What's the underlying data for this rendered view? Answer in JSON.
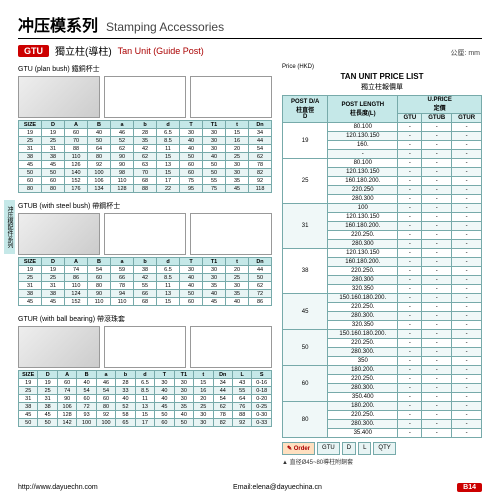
{
  "header": {
    "cn": "冲压模系列",
    "en": "Stamping Accessories"
  },
  "subhead": {
    "tag": "GTU",
    "cn": "獨立柱(導柱)",
    "en": "Tan Unit (Guide Post)"
  },
  "units": "公厘: mm",
  "sideTab": "冲压模配件系列",
  "sections": [
    {
      "title": "GTU (plan bush) 鐵銅杯士",
      "cols": [
        "SIZE",
        "D",
        "A",
        "B",
        "a",
        "b",
        "d",
        "T",
        "T1",
        "t",
        "Dn"
      ],
      "rows": [
        [
          "19",
          "19",
          "60",
          "40",
          "46",
          "28",
          "6.5",
          "30",
          "30",
          "15",
          "34"
        ],
        [
          "25",
          "25",
          "70",
          "50",
          "52",
          "35",
          "8.5",
          "40",
          "30",
          "16",
          "44"
        ],
        [
          "31",
          "31",
          "88",
          "64",
          "62",
          "42",
          "11",
          "40",
          "30",
          "20",
          "54"
        ],
        [
          "38",
          "38",
          "110",
          "80",
          "90",
          "62",
          "15",
          "50",
          "40",
          "25",
          "62"
        ],
        [
          "45",
          "45",
          "126",
          "92",
          "90",
          "63",
          "13",
          "60",
          "50",
          "30",
          "78"
        ],
        [
          "50",
          "50",
          "140",
          "100",
          "98",
          "70",
          "15",
          "60",
          "50",
          "30",
          "82"
        ],
        [
          "60",
          "60",
          "152",
          "106",
          "110",
          "68",
          "17",
          "75",
          "55",
          "35",
          "92"
        ],
        [
          "80",
          "80",
          "176",
          "134",
          "128",
          "88",
          "22",
          "95",
          "75",
          "45",
          "118"
        ]
      ]
    },
    {
      "title": "GTUB (with steel bush) 帶鋼杯士",
      "cols": [
        "SIZE",
        "D",
        "A",
        "B",
        "a",
        "b",
        "d",
        "T",
        "T1",
        "t",
        "Dn"
      ],
      "rows": [
        [
          "19",
          "19",
          "74",
          "54",
          "59",
          "38",
          "6.5",
          "30",
          "30",
          "20",
          "44"
        ],
        [
          "25",
          "25",
          "86",
          "60",
          "66",
          "42",
          "8.5",
          "40",
          "30",
          "25",
          "50"
        ],
        [
          "31",
          "31",
          "110",
          "80",
          "78",
          "55",
          "11",
          "40",
          "35",
          "30",
          "62"
        ],
        [
          "38",
          "38",
          "124",
          "90",
          "94",
          "66",
          "13",
          "50",
          "40",
          "35",
          "72"
        ],
        [
          "45",
          "45",
          "152",
          "110",
          "110",
          "68",
          "15",
          "60",
          "45",
          "40",
          "86"
        ]
      ]
    },
    {
      "title": "GTUR (with ball bearing) 帶滾珠套",
      "cols": [
        "SIZE",
        "D",
        "A",
        "B",
        "a",
        "b",
        "d",
        "T",
        "T1",
        "t",
        "Dn",
        "L",
        "S"
      ],
      "rows": [
        [
          "19",
          "19",
          "60",
          "40",
          "46",
          "28",
          "6.5",
          "30",
          "30",
          "15",
          "34",
          "43",
          "0-16"
        ],
        [
          "25",
          "25",
          "74",
          "54",
          "54",
          "33",
          "8.5",
          "40",
          "30",
          "16",
          "44",
          "55",
          "0-18"
        ],
        [
          "31",
          "31",
          "90",
          "60",
          "60",
          "40",
          "11",
          "40",
          "30",
          "20",
          "54",
          "64",
          "0-20"
        ],
        [
          "38",
          "38",
          "106",
          "72",
          "80",
          "52",
          "13",
          "45",
          "35",
          "25",
          "62",
          "76",
          "0-25"
        ],
        [
          "45",
          "45",
          "128",
          "93",
          "92",
          "58",
          "15",
          "50",
          "40",
          "30",
          "78",
          "88",
          "0-30"
        ],
        [
          "50",
          "50",
          "142",
          "100",
          "100",
          "65",
          "17",
          "60",
          "50",
          "30",
          "82",
          "92",
          "0-33"
        ]
      ]
    }
  ],
  "price": {
    "hkd": "Price (HKD)",
    "title": "TAN UNIT PRICE LIST",
    "sub": "獨立柱報價單",
    "headers": {
      "post": "POST D/A\n柱直徑\nD",
      "len": "POST LENGTH\n柱長度(L)",
      "uprice": "U.PRICE\n定價"
    },
    "ucols": [
      "GTU",
      "GTUB",
      "GTUR"
    ],
    "rows": [
      {
        "d": "19",
        "lens": [
          "80.100",
          "120.130.150",
          "160.",
          "-"
        ]
      },
      {
        "d": "25",
        "lens": [
          "80.100",
          "120.130.150",
          "160.180.200.",
          "220.250",
          "280.300"
        ]
      },
      {
        "d": "31",
        "lens": [
          "100",
          "120.130.150",
          "160.180.200.",
          "220.250.",
          "280.300"
        ]
      },
      {
        "d": "38",
        "lens": [
          "120.130.150",
          "160.180.200.",
          "220.250.",
          "280.300",
          "320.350"
        ]
      },
      {
        "d": "45",
        "lens": [
          "150.160.180.200.",
          "220.250.",
          "280.300.",
          "320.350"
        ]
      },
      {
        "d": "50",
        "lens": [
          "150.160.180.200.",
          "220.250.",
          "280.300.",
          "350"
        ]
      },
      {
        "d": "60",
        "lens": [
          "180.200.",
          "220.250.",
          "280.300.",
          "350.400"
        ]
      },
      {
        "d": "80",
        "lens": [
          "180.200.",
          "220.250.",
          "280.300.",
          "35.400"
        ]
      }
    ]
  },
  "order": {
    "label": "Order",
    "cells": [
      "GTU",
      "D",
      "L",
      "QTY"
    ]
  },
  "note": "▲ 直径Ø45~80導柱附銅套",
  "footer": {
    "left": "http://www.dayuechn.com",
    "mid": "Email:elena@dayuechina.cn",
    "pg": "B14"
  }
}
